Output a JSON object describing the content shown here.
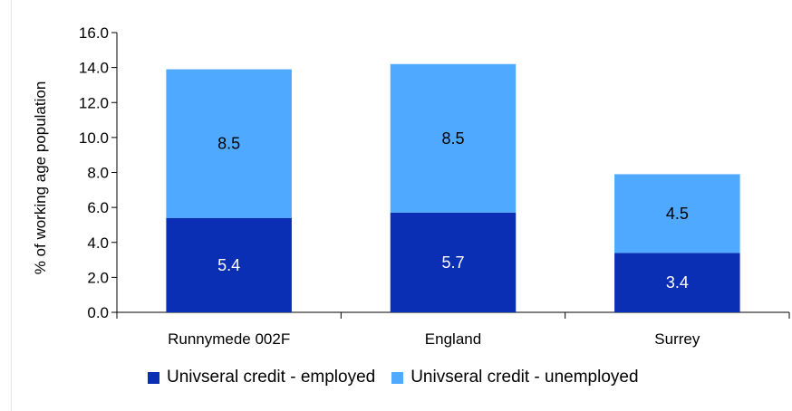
{
  "chart_data": {
    "type": "bar",
    "stacked": true,
    "categories": [
      "Runnymede 002F",
      "England",
      "Surrey"
    ],
    "series": [
      {
        "name": "Univseral credit - employed",
        "values": [
          5.4,
          5.7,
          3.4
        ],
        "color": "#0a2fb4"
      },
      {
        "name": "Univseral credit - unemployed",
        "values": [
          8.5,
          8.5,
          4.5
        ],
        "color": "#4fa9ff"
      }
    ],
    "title": "",
    "xlabel": "",
    "ylabel": "% of working age population",
    "ylim": [
      0,
      16
    ],
    "yticks": [
      "0.0",
      "2.0",
      "4.0",
      "6.0",
      "8.0",
      "10.0",
      "12.0",
      "14.0",
      "16.0"
    ],
    "grid": false,
    "legend_position": "bottom"
  },
  "colors": {
    "axis": "#000000",
    "frame_border": "#e6e6e6"
  }
}
